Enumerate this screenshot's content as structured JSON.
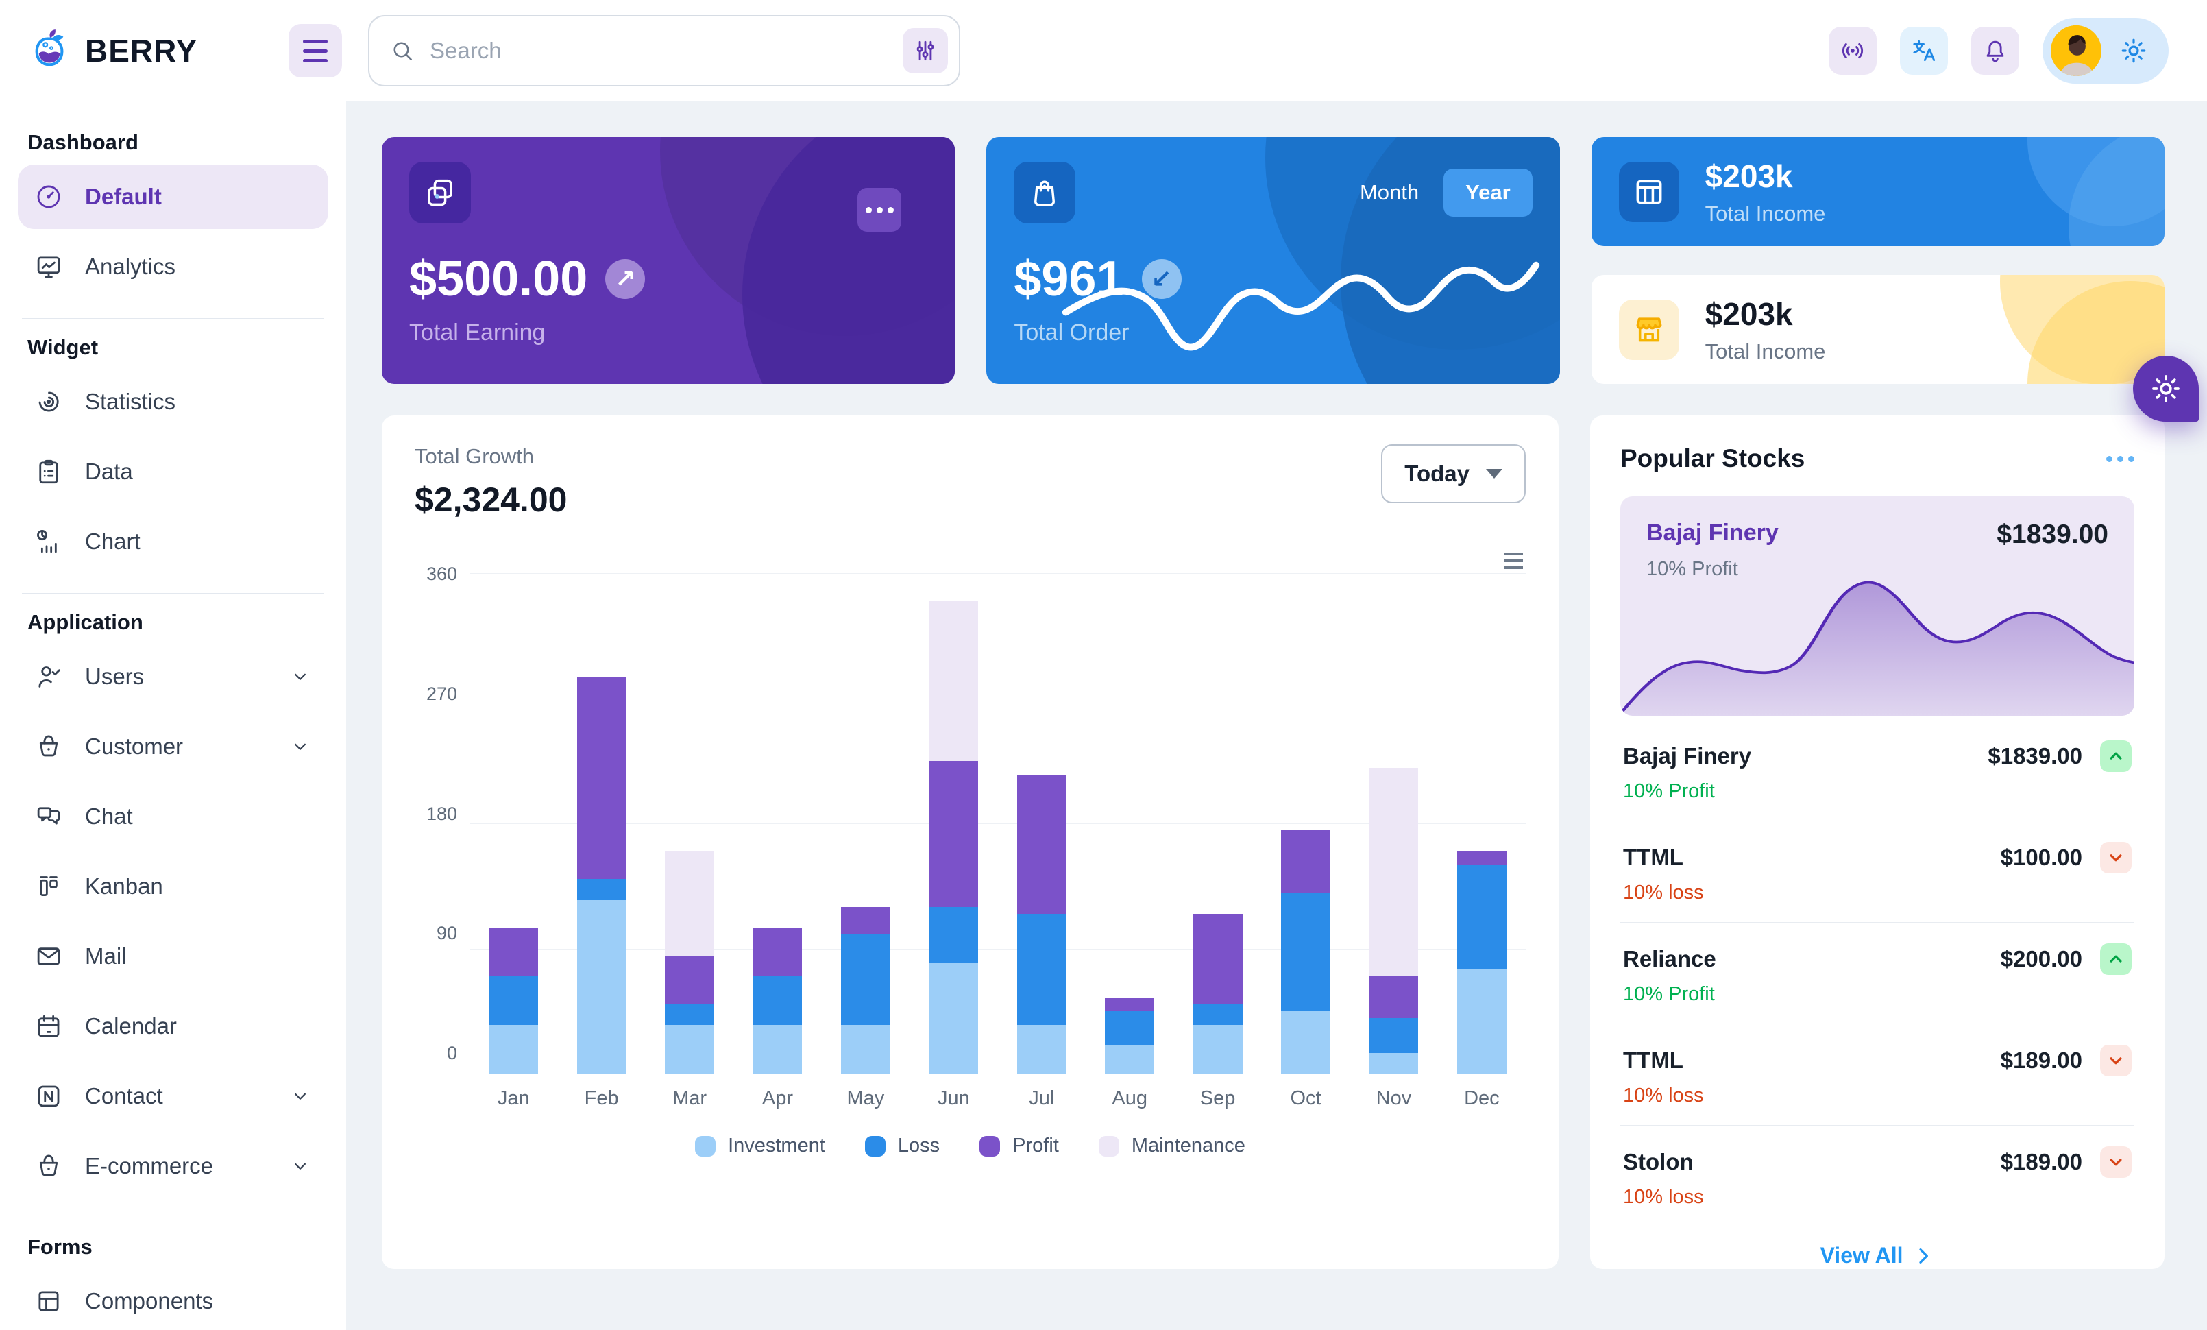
{
  "header": {
    "brand": "BERRY",
    "search_placeholder": "Search"
  },
  "sidebar": {
    "sections": [
      {
        "label": "Dashboard",
        "divider_after": true,
        "items": [
          {
            "label": "Default",
            "icon": "gauge-icon",
            "active": true
          },
          {
            "label": "Analytics",
            "icon": "monitor-chart-icon"
          }
        ]
      },
      {
        "label": "Widget",
        "divider_after": true,
        "items": [
          {
            "label": "Statistics",
            "icon": "arcs-icon"
          },
          {
            "label": "Data",
            "icon": "clipboard-icon"
          },
          {
            "label": "Chart",
            "icon": "pie-bars-icon"
          }
        ]
      },
      {
        "label": "Application",
        "divider_after": true,
        "items": [
          {
            "label": "Users",
            "icon": "user-check-icon",
            "chevron": true
          },
          {
            "label": "Customer",
            "icon": "basket-icon",
            "chevron": true
          },
          {
            "label": "Chat",
            "icon": "chat-icon"
          },
          {
            "label": "Kanban",
            "icon": "kanban-icon"
          },
          {
            "label": "Mail",
            "icon": "mail-icon"
          },
          {
            "label": "Calendar",
            "icon": "calendar-icon"
          },
          {
            "label": "Contact",
            "icon": "contact-icon",
            "chevron": true
          },
          {
            "label": "E-commerce",
            "icon": "basket-icon",
            "chevron": true
          }
        ]
      },
      {
        "label": "Forms",
        "divider_after": false,
        "items": [
          {
            "label": "Components",
            "icon": "components-icon"
          }
        ]
      }
    ]
  },
  "cards": {
    "earning": {
      "amount": "$500.00",
      "label": "Total Earning"
    },
    "order": {
      "amount": "$961",
      "label": "Total Order",
      "toggle_month": "Month",
      "toggle_year": "Year",
      "active_toggle": "Year"
    },
    "income_blue": {
      "amount": "$203k",
      "label": "Total Income"
    },
    "income_light": {
      "amount": "$203k",
      "label": "Total Income"
    }
  },
  "growth": {
    "title": "Total Growth",
    "amount": "$2,324.00",
    "range_label": "Today"
  },
  "chart_data": {
    "type": "bar",
    "stacked": true,
    "title": "Total Growth",
    "categories": [
      "Jan",
      "Feb",
      "Mar",
      "Apr",
      "May",
      "Jun",
      "Jul",
      "Aug",
      "Sep",
      "Oct",
      "Nov",
      "Dec"
    ],
    "series": [
      {
        "name": "Investment",
        "color": "#9ccef8",
        "values": [
          35,
          125,
          35,
          35,
          35,
          80,
          35,
          20,
          35,
          45,
          15,
          75
        ]
      },
      {
        "name": "Loss",
        "color": "#2b8ce8",
        "values": [
          35,
          15,
          15,
          35,
          65,
          40,
          80,
          25,
          15,
          85,
          25,
          75
        ]
      },
      {
        "name": "Profit",
        "color": "#7b52c9",
        "values": [
          35,
          145,
          35,
          35,
          20,
          105,
          100,
          10,
          65,
          45,
          30,
          10
        ]
      },
      {
        "name": "Maintenance",
        "color": "#ede7f6",
        "values": [
          0,
          0,
          75,
          0,
          0,
          115,
          0,
          0,
          0,
          0,
          150,
          0
        ]
      }
    ],
    "ylim": [
      0,
      360
    ],
    "yticks": [
      0,
      90,
      180,
      270,
      360
    ],
    "grid": true,
    "legend_position": "bottom"
  },
  "stocks": {
    "title": "Popular Stocks",
    "featured": {
      "name": "Bajaj Finery",
      "price": "$1839.00",
      "sub": "10% Profit"
    },
    "items": [
      {
        "name": "Bajaj Finery",
        "price": "$1839.00",
        "change": "10% Profit",
        "direction": "up"
      },
      {
        "name": "TTML",
        "price": "$100.00",
        "change": "10% loss",
        "direction": "down"
      },
      {
        "name": "Reliance",
        "price": "$200.00",
        "change": "10% Profit",
        "direction": "up"
      },
      {
        "name": "TTML",
        "price": "$189.00",
        "change": "10% loss",
        "direction": "down"
      },
      {
        "name": "Stolon",
        "price": "$189.00",
        "change": "10% loss",
        "direction": "down"
      }
    ],
    "view_all": "View All"
  },
  "colors": {
    "accent_purple": "#5e35b1",
    "accent_blue": "#2283e2",
    "success": "#00b050",
    "error": "#d84315",
    "lavender": "#ede7f6"
  }
}
